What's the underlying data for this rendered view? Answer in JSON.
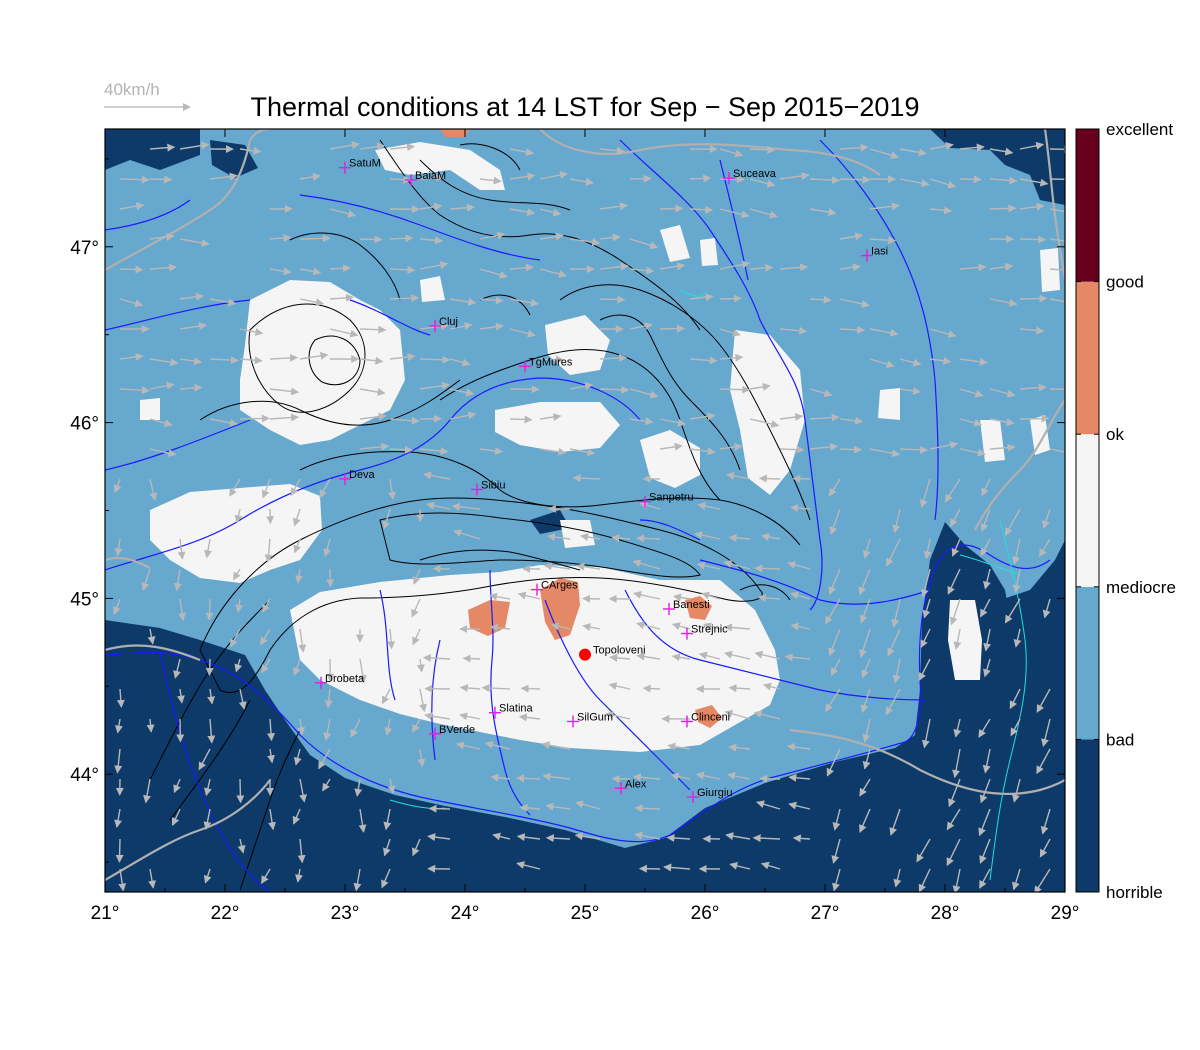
{
  "title": "Thermal conditions at 14 LST for Sep − Sep  2015−2019",
  "wind_reference": {
    "label": "40km/h"
  },
  "map": {
    "lon_range": [
      21,
      29
    ],
    "lat_range": [
      43.33,
      47.67
    ],
    "x_ticks": [
      {
        "value": 21,
        "label": "21°"
      },
      {
        "value": 22,
        "label": "22°"
      },
      {
        "value": 23,
        "label": "23°"
      },
      {
        "value": 24,
        "label": "24°"
      },
      {
        "value": 25,
        "label": "25°"
      },
      {
        "value": 26,
        "label": "26°"
      },
      {
        "value": 27,
        "label": "27°"
      },
      {
        "value": 28,
        "label": "28°"
      },
      {
        "value": 29,
        "label": "29°"
      }
    ],
    "y_ticks": [
      {
        "value": 44,
        "label": "44°"
      },
      {
        "value": 45,
        "label": "45°"
      },
      {
        "value": 46,
        "label": "46°"
      },
      {
        "value": 47,
        "label": "47°"
      }
    ]
  },
  "legend": {
    "classes": [
      {
        "label": "horrible",
        "color": "#0d3a69"
      },
      {
        "label": "bad",
        "color": "#67a8ce"
      },
      {
        "label": "mediocre",
        "color": "#f5f5f5"
      },
      {
        "label": "ok",
        "color": "#e58866"
      },
      {
        "label": "good",
        "color": "#67001f"
      }
    ],
    "boundary_labels": [
      "horrible",
      "bad",
      "mediocre",
      "ok",
      "good",
      "excellent"
    ]
  },
  "colors": {
    "bad": "#67a8ce",
    "horrible": "#0d3a69",
    "mediocre": "#f5f5f5",
    "ok": "#e58866",
    "rivers": "#1a1aff",
    "contours": "#000000",
    "borders": "#b0b0b0",
    "wind_arrows": "#b8b8b8",
    "city_marker": "#e020e0",
    "site_marker": "#ff0000"
  },
  "cities": [
    {
      "name": "SatuM",
      "lon": 23.0,
      "lat": 47.45
    },
    {
      "name": "BaiaM",
      "lon": 23.55,
      "lat": 47.38
    },
    {
      "name": "Suceava",
      "lon": 26.2,
      "lat": 47.39
    },
    {
      "name": "Iasi",
      "lon": 27.35,
      "lat": 46.95
    },
    {
      "name": "Cluj",
      "lon": 23.75,
      "lat": 46.55
    },
    {
      "name": "TgMures",
      "lon": 24.5,
      "lat": 46.32
    },
    {
      "name": "Deva",
      "lon": 23.0,
      "lat": 45.68
    },
    {
      "name": "Sibiu",
      "lon": 24.1,
      "lat": 45.62
    },
    {
      "name": "Sanpetru",
      "lon": 25.5,
      "lat": 45.55
    },
    {
      "name": "CArges",
      "lon": 24.6,
      "lat": 45.05
    },
    {
      "name": "Banesti",
      "lon": 25.7,
      "lat": 44.94
    },
    {
      "name": "Strejnic",
      "lon": 25.85,
      "lat": 44.8
    },
    {
      "name": "Drobeta",
      "lon": 22.8,
      "lat": 44.52
    },
    {
      "name": "Slatina",
      "lon": 24.25,
      "lat": 44.35
    },
    {
      "name": "SilGum",
      "lon": 24.9,
      "lat": 44.3
    },
    {
      "name": "Clinceni",
      "lon": 25.85,
      "lat": 44.3
    },
    {
      "name": "BVerde",
      "lon": 23.75,
      "lat": 44.23
    },
    {
      "name": "Alex",
      "lon": 25.3,
      "lat": 43.92
    },
    {
      "name": "Giurgiu",
      "lon": 25.9,
      "lat": 43.87
    }
  ],
  "site": {
    "name": "Topoloveni",
    "lon": 25.0,
    "lat": 44.68
  }
}
